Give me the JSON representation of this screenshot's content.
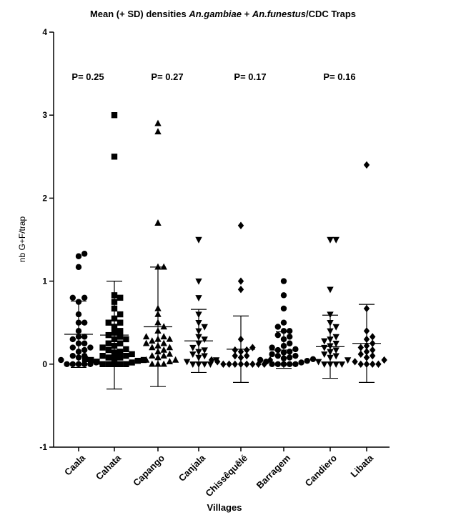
{
  "chart_data": {
    "type": "scatter",
    "title": {
      "parts": [
        {
          "text": "Mean (+ SD) densities ",
          "italic": false
        },
        {
          "text": "An.gambiae",
          "italic": true
        },
        {
          "text": " + ",
          "italic": false
        },
        {
          "text": "An.funestus",
          "italic": true
        },
        {
          "text": "/CDC Traps",
          "italic": false
        }
      ]
    },
    "xlabel": "Villages",
    "ylabel": "nb G+F/trap",
    "ylim": [
      -1,
      4
    ],
    "yticks": [
      "-1",
      "0",
      "1",
      "2",
      "3",
      "4"
    ],
    "grid": false,
    "categories": [
      "Caala",
      "Cahata",
      "Capango",
      "Canjala",
      "Chissêquêlé",
      "Barragem",
      "Candiero",
      "Libata"
    ],
    "p_values": [
      {
        "label": "P= 0.25",
        "category_index": 0
      },
      {
        "label": "P= 0.27",
        "category_index": 2
      },
      {
        "label": "P= 0.17",
        "category_index": 4
      },
      {
        "label": "P= 0.16",
        "category_index": 6
      }
    ],
    "series": [
      {
        "category": "Caala",
        "marker": "circle",
        "mean": 0.36,
        "sd": 0.4,
        "values": [
          1.33,
          1.3,
          1.17,
          0.8,
          0.8,
          0.75,
          0.6,
          0.5,
          0.5,
          0.4,
          0.33,
          0.33,
          0.3,
          0.25,
          0.25,
          0.2,
          0.2,
          0.17,
          0.15,
          0.1,
          0.1,
          0.08,
          0.05,
          0.02,
          0,
          0,
          0,
          0,
          0
        ]
      },
      {
        "category": "Cahata",
        "marker": "square",
        "mean": 0.35,
        "sd": 0.65,
        "values": [
          3.0,
          2.5,
          0.83,
          0.8,
          0.75,
          0.67,
          0.6,
          0.55,
          0.5,
          0.5,
          0.45,
          0.4,
          0.38,
          0.35,
          0.33,
          0.3,
          0.3,
          0.25,
          0.25,
          0.22,
          0.2,
          0.18,
          0.17,
          0.15,
          0.14,
          0.12,
          0.1,
          0.1,
          0.08,
          0.08,
          0.07,
          0.06,
          0.05,
          0.05,
          0.04,
          0.03,
          0.02,
          0,
          0,
          0,
          0,
          0
        ]
      },
      {
        "category": "Capango",
        "marker": "triangle-up",
        "mean": 0.45,
        "sd": 0.72,
        "values": [
          2.9,
          2.8,
          1.7,
          1.17,
          1.17,
          0.67,
          0.6,
          0.5,
          0.45,
          0.4,
          0.33,
          0.33,
          0.3,
          0.3,
          0.28,
          0.25,
          0.25,
          0.22,
          0.2,
          0.2,
          0.17,
          0.15,
          0.12,
          0.1,
          0.1,
          0.08,
          0.05,
          0.05,
          0.03,
          0,
          0,
          0
        ]
      },
      {
        "category": "Canjala",
        "marker": "triangle-down",
        "mean": 0.28,
        "sd": 0.38,
        "values": [
          1.5,
          1.0,
          0.8,
          0.6,
          0.5,
          0.45,
          0.4,
          0.33,
          0.3,
          0.25,
          0.2,
          0.17,
          0.15,
          0.12,
          0.1,
          0.08,
          0.05,
          0.03,
          0,
          0,
          0,
          0
        ]
      },
      {
        "category": "Chissêquêlé",
        "marker": "diamond",
        "mean": 0.18,
        "sd": 0.4,
        "values": [
          1.67,
          1.0,
          0.9,
          0.3,
          0.2,
          0.17,
          0.17,
          0.15,
          0.1,
          0.1,
          0.08,
          0.05,
          0.05,
          0.03,
          0,
          0,
          0,
          0,
          0,
          0,
          0,
          0
        ]
      },
      {
        "category": "Barragem",
        "marker": "circle",
        "mean": 0.17,
        "sd": 0.22,
        "values": [
          1.0,
          0.83,
          0.67,
          0.5,
          0.45,
          0.4,
          0.4,
          0.35,
          0.33,
          0.3,
          0.25,
          0.22,
          0.2,
          0.18,
          0.17,
          0.15,
          0.14,
          0.12,
          0.1,
          0.1,
          0.08,
          0.07,
          0.06,
          0.05,
          0.04,
          0.03,
          0.02,
          0,
          0,
          0,
          0,
          0
        ]
      },
      {
        "category": "Candiero",
        "marker": "triangle-down",
        "mean": 0.21,
        "sd": 0.38,
        "values": [
          1.5,
          1.5,
          0.9,
          0.6,
          0.5,
          0.45,
          0.4,
          0.33,
          0.3,
          0.28,
          0.25,
          0.22,
          0.2,
          0.17,
          0.15,
          0.12,
          0.1,
          0.08,
          0.05,
          0.03,
          0,
          0,
          0,
          0
        ]
      },
      {
        "category": "Libata",
        "marker": "diamond",
        "mean": 0.25,
        "sd": 0.47,
        "values": [
          2.4,
          0.67,
          0.4,
          0.33,
          0.3,
          0.25,
          0.22,
          0.2,
          0.17,
          0.15,
          0.12,
          0.1,
          0.08,
          0.05,
          0.03,
          0,
          0,
          0,
          0
        ]
      }
    ]
  }
}
